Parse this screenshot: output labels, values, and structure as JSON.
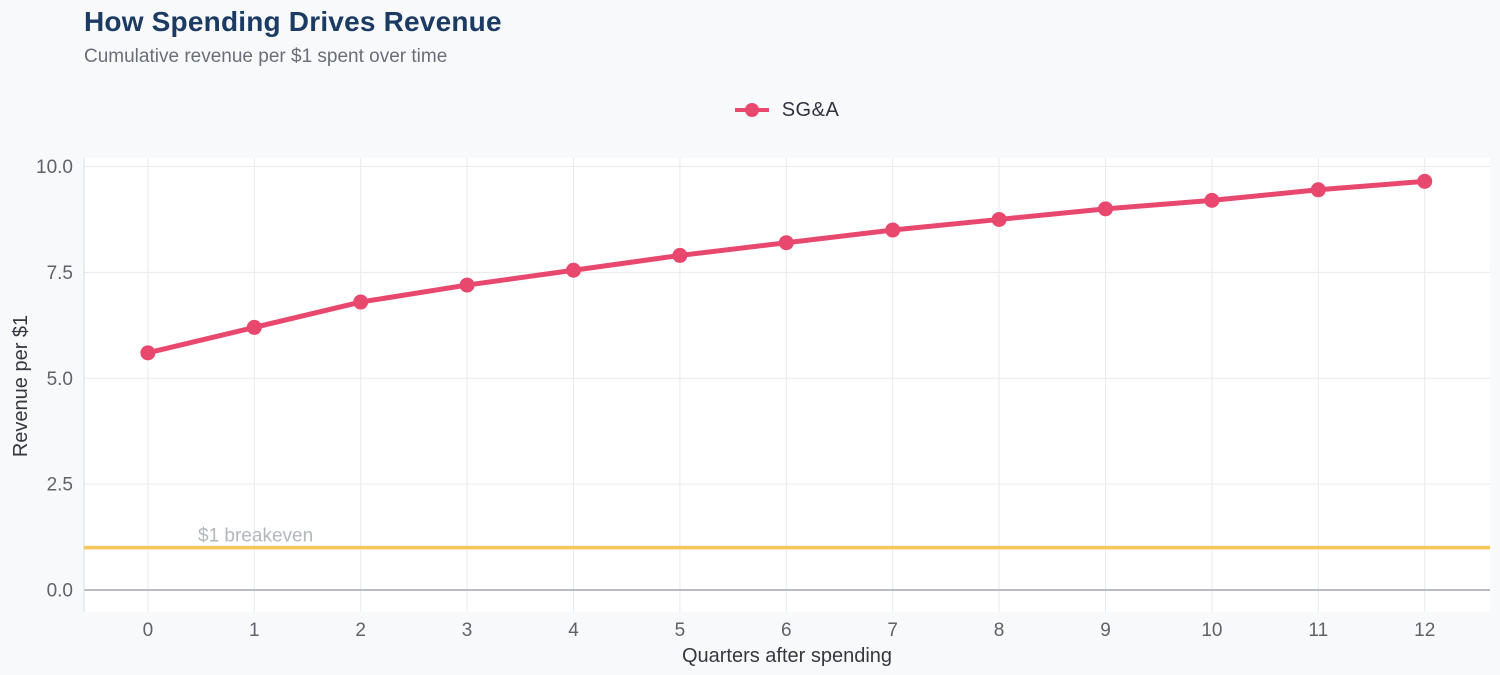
{
  "header": {
    "title": "How Spending Drives Revenue",
    "subtitle": "Cumulative revenue per $1 spent over time"
  },
  "legend": {
    "items": [
      {
        "label": "SG&A",
        "color": "#e8486d"
      }
    ]
  },
  "chart_data": {
    "type": "line",
    "title": "How Spending Drives Revenue",
    "subtitle": "Cumulative revenue per $1 spent over time",
    "xlabel": "Quarters after spending",
    "ylabel": "Revenue per $1",
    "x": [
      0,
      1,
      2,
      3,
      4,
      5,
      6,
      7,
      8,
      9,
      10,
      11,
      12
    ],
    "x_tick_labels": [
      "0",
      "1",
      "2",
      "3",
      "4",
      "5",
      "6",
      "7",
      "8",
      "9",
      "10",
      "11",
      "12"
    ],
    "series": [
      {
        "name": "SG&A",
        "color": "#e8486d",
        "values": [
          5.6,
          6.2,
          6.8,
          7.2,
          7.55,
          7.9,
          8.2,
          8.5,
          8.75,
          9.0,
          9.2,
          9.45,
          9.65
        ]
      }
    ],
    "y_tick_values": [
      0,
      2.5,
      5,
      7.5,
      10
    ],
    "y_tick_labels": [
      "0.0",
      "2.5",
      "5.0",
      "7.5",
      "10.0"
    ],
    "xlim": [
      -0.6,
      12.6
    ],
    "ylim": [
      -0.5,
      10.2
    ],
    "grid": true,
    "legend_position": "top-center",
    "reference_line": {
      "label": "$1 breakeven",
      "y": 1.0
    }
  },
  "colors": {
    "accent": "#e8486d",
    "breakeven_line": "#f6c65c",
    "title": "#1c3b63",
    "subtitle": "#6a6f77",
    "tick_label": "#5f6268",
    "axis_title": "#35383e",
    "gridline": "#e9eaec",
    "zero_line": "#b9bcc1",
    "axis_line": "#dadce0",
    "annotation_label": "#b3b7be",
    "plot_bg": "#ffffff",
    "page_bg": "#f8f9fb"
  }
}
